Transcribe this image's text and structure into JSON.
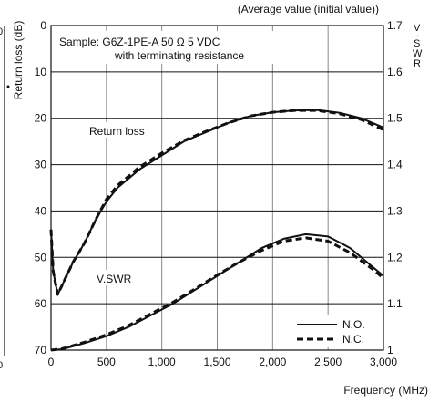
{
  "header_note": "(Average value (initial value))",
  "chart_data": {
    "type": "line",
    "sample_line1": "Sample: G6Z-1PE-A  50 Ω 5 VDC",
    "sample_line2": "with terminating resistance",
    "xlabel": "Frequency (MHz)",
    "ylabel_left": "Return loss (dB)",
    "ylabel_right": "V.SWR",
    "xlim": [
      0,
      3000
    ],
    "ylim_left": [
      0,
      70
    ],
    "ylim_right": [
      1.0,
      1.7
    ],
    "x_ticks": [
      "0",
      "500",
      "1,000",
      "1,500",
      "2,000",
      "2,500",
      "3,000"
    ],
    "y_left_ticks": [
      "0",
      "10",
      "20",
      "30",
      "40",
      "50",
      "60",
      "70"
    ],
    "y_right_ticks": [
      "1.7",
      "1.6",
      "1.5",
      "1.4",
      "1.3",
      "1.2",
      "1.1",
      "1"
    ],
    "legend": [
      {
        "label": "N.O.",
        "style": "solid"
      },
      {
        "label": "N.C.",
        "style": "dashed"
      }
    ],
    "annotations": [
      "Return loss",
      "V.SWR"
    ],
    "grid": true,
    "left_partial_ticks": [
      "0",
      "0"
    ],
    "return_loss_dB": {
      "N.O.": {
        "x": [
          0,
          20,
          60,
          100,
          200,
          300,
          400,
          500,
          600,
          800,
          1000,
          1200,
          1400,
          1600,
          1800,
          2000,
          2200,
          2400,
          2600,
          2800,
          3000
        ],
        "y": [
          44,
          53,
          58,
          56,
          51,
          47,
          42,
          38,
          35,
          31,
          28,
          25,
          23,
          21,
          19.5,
          18.7,
          18.3,
          18.2,
          18.8,
          20,
          22
        ]
      },
      "N.C.": {
        "x": [
          0,
          20,
          60,
          100,
          200,
          300,
          400,
          500,
          600,
          800,
          1000,
          1200,
          1400,
          1600,
          1800,
          2000,
          2200,
          2400,
          2600,
          2800,
          3000
        ],
        "y": [
          44,
          53,
          58,
          56,
          51,
          47,
          42,
          37.5,
          34.5,
          30.5,
          27.5,
          24.8,
          22.8,
          21,
          19.5,
          18.7,
          18.3,
          18.3,
          19,
          20.3,
          22.5
        ]
      }
    },
    "vswr": {
      "N.O.": {
        "x": [
          0,
          100,
          300,
          500,
          700,
          900,
          1100,
          1300,
          1500,
          1700,
          1900,
          2100,
          2300,
          2500,
          2700,
          2900,
          3000
        ],
        "y": [
          1.0,
          1.002,
          1.015,
          1.03,
          1.05,
          1.075,
          1.1,
          1.13,
          1.16,
          1.19,
          1.22,
          1.24,
          1.25,
          1.245,
          1.22,
          1.18,
          1.16
        ]
      },
      "N.C.": {
        "x": [
          0,
          100,
          300,
          500,
          700,
          900,
          1100,
          1300,
          1500,
          1700,
          1900,
          2100,
          2300,
          2500,
          2700,
          2900,
          3000
        ],
        "y": [
          1.0,
          1.003,
          1.017,
          1.033,
          1.053,
          1.078,
          1.103,
          1.132,
          1.162,
          1.19,
          1.215,
          1.235,
          1.242,
          1.235,
          1.21,
          1.175,
          1.155
        ]
      }
    }
  }
}
